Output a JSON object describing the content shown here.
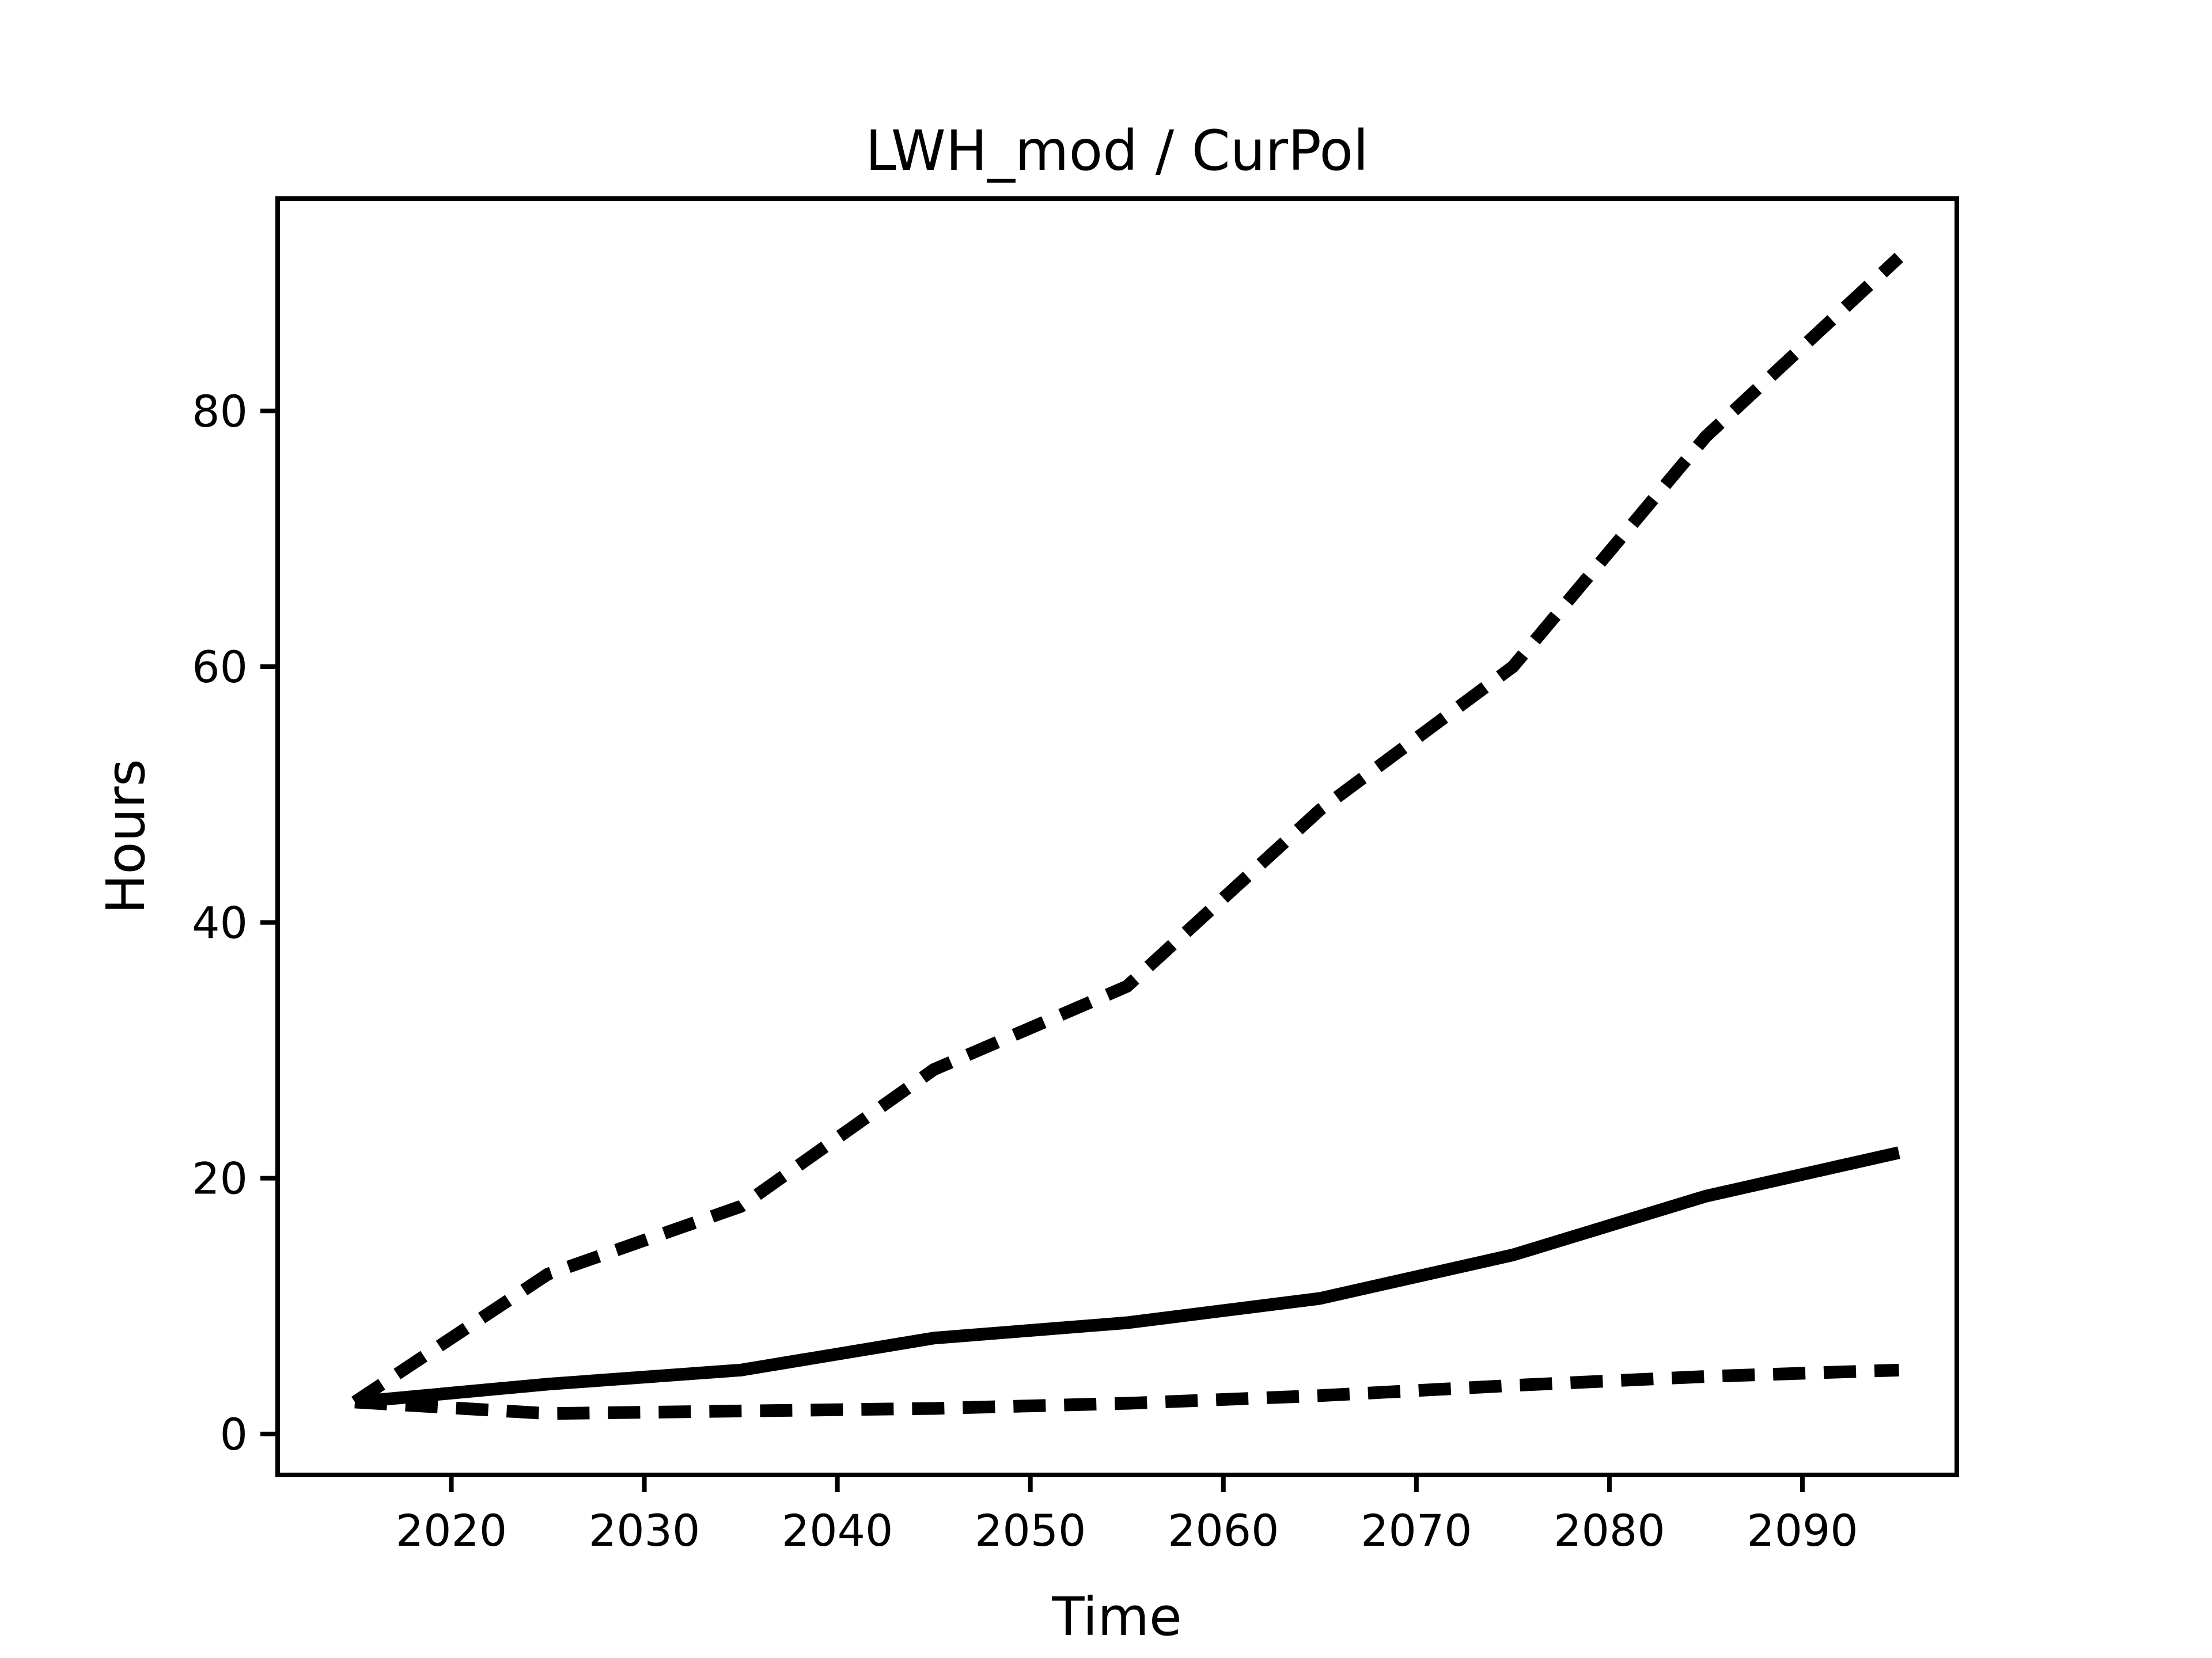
{
  "figure": {
    "background": "#ffffff",
    "line_color": "#000000"
  },
  "chart_data": {
    "type": "line",
    "title": "LWH_mod / CurPol",
    "xlabel": "Time",
    "ylabel": "Hours",
    "x": [
      2015,
      2025,
      2035,
      2045,
      2055,
      2065,
      2075,
      2085,
      2095
    ],
    "series": [
      {
        "name": "upper_dashed",
        "style": "dashed",
        "values": [
          2.5,
          12.5,
          17.8,
          28.5,
          35.0,
          48.8,
          60.0,
          78.0,
          92.0
        ]
      },
      {
        "name": "solid",
        "style": "solid",
        "values": [
          2.5,
          3.9,
          5.0,
          7.5,
          8.7,
          10.6,
          14.0,
          18.6,
          22.0
        ]
      },
      {
        "name": "lower_dashed",
        "style": "dashed",
        "values": [
          2.5,
          1.6,
          1.8,
          2.0,
          2.4,
          3.0,
          3.8,
          4.5,
          5.0
        ]
      }
    ],
    "x_ticks": [
      2020,
      2030,
      2040,
      2050,
      2060,
      2070,
      2080,
      2090
    ],
    "y_ticks": [
      0,
      20,
      40,
      60,
      80
    ],
    "xlim": [
      2011,
      2098
    ],
    "ylim": [
      -3.2,
      96.6
    ],
    "grid": false
  }
}
